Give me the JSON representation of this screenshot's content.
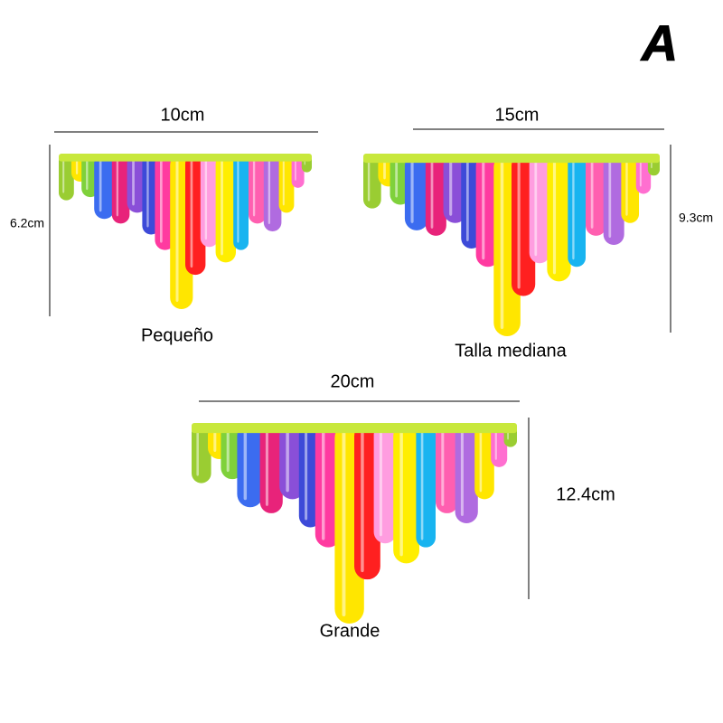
{
  "badge": "A",
  "items": [
    {
      "width": "10cm",
      "height": "6.2cm",
      "label": "Pequeño"
    },
    {
      "width": "15cm",
      "height": "9.3cm",
      "label": "Talla mediana"
    },
    {
      "width": "20cm",
      "height": "12.4cm",
      "label": "Grande"
    }
  ]
}
